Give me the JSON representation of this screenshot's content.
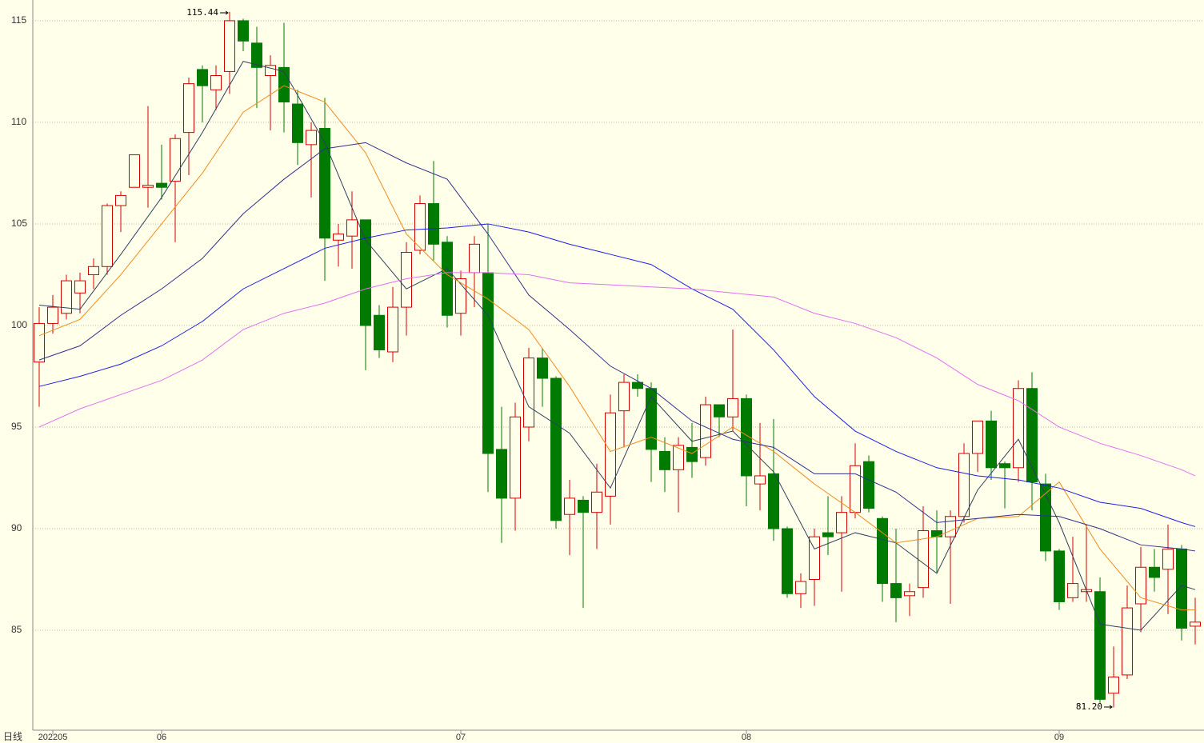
{
  "chart_data": {
    "type": "candlestick",
    "period_label": "日线",
    "categories": [
      null,
      "202205",
      null,
      null,
      null,
      null,
      null,
      null,
      null,
      "06",
      null,
      null,
      null,
      null,
      null,
      null,
      null,
      null,
      null,
      null,
      null,
      null,
      null,
      null,
      null,
      null,
      null,
      null,
      null,
      null,
      null,
      "07",
      null,
      null,
      null,
      null,
      null,
      null,
      null,
      null,
      null,
      null,
      null,
      null,
      null,
      null,
      null,
      null,
      null,
      null,
      null,
      null,
      "08",
      null,
      null,
      null,
      null,
      null,
      null,
      null,
      null,
      null,
      null,
      null,
      null,
      null,
      null,
      null,
      null,
      null,
      null,
      null,
      null,
      null,
      null,
      "09",
      null,
      null,
      null,
      null,
      null,
      null,
      null,
      null,
      null,
      null
    ],
    "open": [
      98.2,
      100.1,
      100.6,
      101.6,
      102.5,
      102.9,
      105.9,
      106.8,
      106.8,
      107.0,
      107.1,
      109.5,
      112.6,
      111.6,
      112.5,
      115.0,
      113.9,
      112.3,
      112.7,
      110.9,
      108.9,
      109.7,
      104.2,
      104.4,
      105.2,
      100.5,
      98.7,
      100.9,
      103.7,
      106.0,
      104.1,
      100.6,
      102.6,
      102.6,
      93.9,
      91.5,
      95.0,
      98.4,
      97.4,
      90.7,
      91.4,
      90.8,
      91.6,
      95.8,
      97.2,
      96.9,
      93.8,
      92.9,
      94.0,
      93.5,
      96.1,
      95.5,
      96.4,
      92.2,
      92.7,
      90.0,
      86.8,
      87.5,
      89.8,
      89.8,
      90.8,
      93.3,
      90.5,
      87.3,
      86.7,
      87.1,
      89.9,
      89.6,
      90.6,
      93.7,
      95.3,
      93.2,
      93.0,
      96.9,
      92.2,
      88.9,
      86.6,
      86.9,
      86.9,
      81.9,
      82.8,
      86.3,
      88.1,
      88.0,
      89.0,
      85.2
    ],
    "high": [
      100.9,
      101.5,
      102.5,
      102.6,
      103.3,
      106.0,
      106.6,
      108.4,
      110.8,
      108.9,
      109.4,
      112.2,
      112.8,
      112.8,
      115.44,
      115.1,
      114.7,
      113.3,
      114.9,
      111.6,
      110.0,
      111.2,
      105.0,
      106.6,
      105.2,
      101.0,
      101.9,
      104.1,
      106.4,
      108.1,
      104.4,
      102.7,
      104.4,
      105.0,
      96.0,
      96.2,
      98.9,
      98.9,
      97.5,
      92.4,
      91.6,
      93.2,
      96.6,
      97.6,
      97.6,
      97.2,
      94.5,
      94.5,
      95.2,
      96.5,
      96.0,
      99.8,
      96.6,
      95.2,
      95.4,
      90.1,
      87.8,
      90.0,
      91.6,
      91.6,
      94.2,
      93.6,
      90.6,
      90.0,
      87.3,
      91.1,
      90.9,
      90.9,
      94.2,
      95.3,
      95.8,
      93.3,
      97.3,
      97.7,
      92.7,
      89.0,
      89.6,
      90.2,
      87.6,
      84.2,
      87.2,
      89.1,
      89.0,
      90.2,
      89.2,
      86.6
    ],
    "low": [
      96.0,
      99.6,
      100.3,
      100.6,
      101.8,
      102.5,
      104.6,
      106.8,
      105.8,
      106.2,
      104.1,
      107.4,
      110.0,
      110.6,
      111.4,
      113.5,
      110.7,
      109.6,
      109.5,
      107.9,
      106.3,
      102.2,
      102.9,
      102.8,
      97.8,
      98.4,
      98.2,
      99.5,
      103.5,
      103.2,
      99.9,
      99.5,
      100.9,
      91.8,
      89.3,
      89.9,
      94.3,
      96.0,
      90.0,
      88.7,
      86.1,
      89.0,
      90.2,
      94.0,
      96.5,
      92.3,
      91.8,
      90.8,
      92.5,
      93.1,
      94.5,
      94.8,
      91.1,
      90.9,
      89.4,
      86.6,
      86.1,
      86.2,
      88.7,
      86.9,
      90.5,
      90.8,
      86.4,
      85.4,
      85.7,
      86.6,
      87.8,
      86.3,
      90.3,
      92.8,
      92.4,
      91.0,
      92.3,
      90.9,
      88.4,
      86.0,
      86.4,
      86.4,
      81.4,
      81.2,
      82.6,
      84.9,
      86.9,
      85.8,
      84.5,
      84.3
    ],
    "close": [
      100.1,
      100.9,
      102.2,
      102.2,
      102.9,
      105.9,
      106.4,
      108.4,
      106.9,
      106.8,
      109.2,
      111.9,
      111.8,
      112.3,
      115.0,
      114.0,
      112.7,
      112.8,
      111.0,
      109.0,
      109.6,
      104.3,
      104.5,
      105.2,
      100.0,
      98.8,
      100.9,
      103.6,
      106.0,
      104.0,
      100.5,
      102.3,
      104.0,
      93.7,
      91.5,
      95.5,
      98.4,
      97.4,
      90.4,
      91.5,
      90.8,
      91.8,
      95.7,
      97.2,
      96.9,
      93.9,
      92.9,
      94.1,
      93.3,
      96.1,
      95.5,
      96.4,
      92.6,
      92.6,
      90.0,
      86.8,
      87.4,
      89.6,
      89.6,
      90.8,
      93.1,
      91.0,
      87.3,
      86.6,
      86.9,
      89.9,
      89.6,
      90.6,
      93.7,
      95.3,
      93.0,
      93.0,
      96.9,
      92.3,
      88.9,
      86.4,
      87.3,
      87.0,
      81.6,
      82.7,
      86.1,
      88.1,
      87.6,
      89.0,
      85.1,
      85.4
    ],
    "up_color": "#d40000",
    "down_color": "#007a00",
    "ma_lines": [
      {
        "color": "#2f3f5f",
        "x": [
          0,
          3,
          6,
          9,
          12,
          15,
          18,
          21,
          24,
          27,
          30,
          33,
          36,
          39,
          42,
          45,
          48,
          51,
          54,
          57,
          60,
          63,
          66,
          69,
          72,
          75,
          78,
          81,
          84,
          85
        ],
        "values": [
          101.0,
          100.8,
          103.5,
          106.3,
          109.5,
          113.0,
          112.5,
          109.0,
          104.2,
          101.8,
          102.8,
          100.5,
          96.0,
          94.7,
          92.0,
          96.5,
          94.3,
          94.8,
          92.8,
          89.0,
          89.8,
          89.3,
          87.8,
          91.9,
          94.4,
          90.3,
          85.3,
          85.0,
          87.2,
          87.0
        ]
      },
      {
        "color": "#f08c1e",
        "x": [
          0,
          3,
          6,
          9,
          12,
          15,
          18,
          21,
          24,
          27,
          30,
          33,
          36,
          39,
          42,
          45,
          48,
          51,
          54,
          57,
          60,
          63,
          66,
          69,
          72,
          75,
          78,
          81,
          84,
          85
        ],
        "values": [
          99.5,
          100.3,
          102.5,
          105.0,
          107.5,
          110.5,
          111.8,
          111.0,
          108.5,
          104.5,
          102.5,
          101.3,
          99.8,
          97.0,
          93.8,
          94.5,
          93.7,
          95.0,
          93.8,
          92.2,
          90.8,
          89.3,
          89.6,
          90.5,
          90.6,
          92.3,
          89.0,
          86.6,
          86.0,
          86.0
        ]
      },
      {
        "color": "#30308c",
        "x": [
          0,
          3,
          6,
          9,
          12,
          15,
          18,
          21,
          24,
          27,
          30,
          33,
          36,
          39,
          42,
          45,
          48,
          51,
          54,
          57,
          60,
          63,
          66,
          69,
          72,
          75,
          78,
          81,
          84,
          85
        ],
        "values": [
          98.3,
          99.0,
          100.5,
          101.8,
          103.3,
          105.5,
          107.2,
          108.7,
          109.0,
          108.0,
          107.2,
          104.5,
          101.5,
          99.8,
          98.0,
          96.9,
          95.3,
          94.4,
          94.0,
          92.7,
          92.7,
          91.8,
          90.3,
          90.5,
          90.7,
          90.6,
          90.0,
          89.2,
          89.0,
          88.9
        ]
      },
      {
        "color": "#1e1ee0",
        "x": [
          0,
          3,
          6,
          9,
          12,
          15,
          18,
          21,
          24,
          27,
          30,
          33,
          36,
          39,
          42,
          45,
          48,
          51,
          54,
          57,
          60,
          63,
          66,
          69,
          72,
          75,
          78,
          81,
          84,
          85
        ],
        "values": [
          97.0,
          97.5,
          98.1,
          99.0,
          100.2,
          101.8,
          102.8,
          103.8,
          104.3,
          104.7,
          104.8,
          105.0,
          104.6,
          104.0,
          103.5,
          103.0,
          101.8,
          100.8,
          98.8,
          96.5,
          94.8,
          93.8,
          93.0,
          92.6,
          92.4,
          92.0,
          91.3,
          91.0,
          90.3,
          90.1
        ]
      },
      {
        "color": "#e070f0",
        "x": [
          0,
          3,
          6,
          9,
          12,
          15,
          18,
          21,
          24,
          27,
          30,
          33,
          36,
          39,
          42,
          45,
          48,
          51,
          54,
          57,
          60,
          63,
          66,
          69,
          72,
          75,
          78,
          81,
          84,
          85
        ],
        "values": [
          95.0,
          95.9,
          96.6,
          97.3,
          98.3,
          99.8,
          100.6,
          101.1,
          101.8,
          102.3,
          102.6,
          102.6,
          102.5,
          102.1,
          102.0,
          101.9,
          101.8,
          101.6,
          101.4,
          100.6,
          100.1,
          99.4,
          98.4,
          97.1,
          96.3,
          95.0,
          94.2,
          93.6,
          92.9,
          92.6
        ]
      }
    ],
    "annotations": {
      "high_label": "115.44",
      "low_label": "81.20"
    },
    "ylim": [
      80.08,
      116.02
    ],
    "yticks": [
      85,
      90,
      95,
      100,
      105,
      110,
      115
    ],
    "grid": true
  }
}
